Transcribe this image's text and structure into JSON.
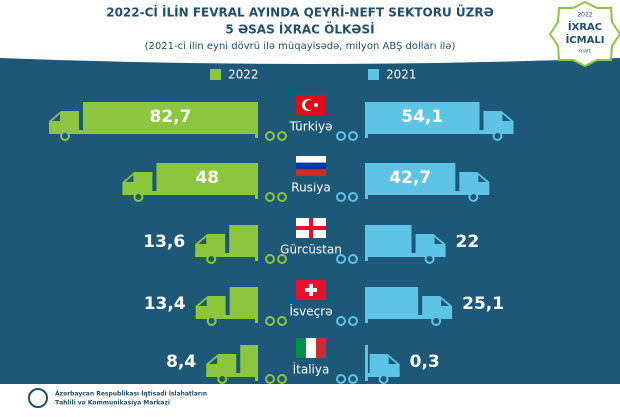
{
  "chart_data": {
    "type": "truck-bar",
    "title": "2022-Cİ İLİN FEVRAL AYINDA QEYRİ-NEFT SEKTORU ÜZRƏ",
    "subtitle": "5 ƏSAS İXRAC ÖLKƏSİ",
    "unit_note": "(2021-ci ilin eyni dövrü ilə müqayisədə, milyon ABŞ dolları ilə)",
    "categories": [
      "Türkiyə",
      "Rusiya",
      "Gürcüstan",
      "İsveçrə",
      "İtaliya"
    ],
    "series": [
      {
        "name": "2022",
        "color": "#8cc63f",
        "values": [
          82.7,
          48,
          13.6,
          13.4,
          8.4
        ],
        "value_labels": [
          "82,7",
          "48",
          "13,6",
          "13,4",
          "8,4"
        ]
      },
      {
        "name": "2021",
        "color": "#5ec3e4",
        "values": [
          54.1,
          42.7,
          22,
          25.1,
          0.3
        ],
        "value_labels": [
          "54,1",
          "42,7",
          "22",
          "25,1",
          "0,3"
        ]
      }
    ]
  },
  "logo": {
    "year": "2022",
    "line1": "İXRAC",
    "line2": "İCMALI",
    "month": "mart"
  },
  "footer": [
    "Azərbaycan Respublikası İqtisadi İslahatların",
    "Təhlili və Kommunikasiya Mərkəzi"
  ]
}
